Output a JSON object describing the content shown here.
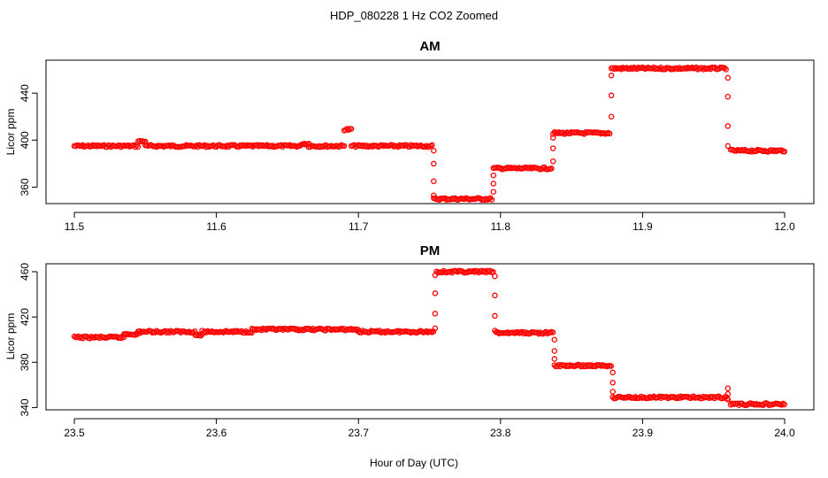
{
  "title": "HDP_080228  1 Hz CO2 Zoomed",
  "colors": {
    "points": "#ff0000",
    "axis": "#000000",
    "background": "#ffffff"
  },
  "chart_data": [
    {
      "type": "scatter",
      "title": "AM",
      "xlabel": "",
      "ylabel": "Licor ppm",
      "xlim": [
        11.5,
        12.0
      ],
      "ylim": [
        346,
        468
      ],
      "xticks": [
        11.5,
        11.6,
        11.7,
        11.8,
        11.9,
        12.0
      ],
      "xtick_labels": [
        "11.5",
        "11.6",
        "11.7",
        "11.8",
        "11.9",
        "12.0"
      ],
      "yticks": [
        360,
        400,
        440
      ],
      "ytick_labels": [
        "360",
        "400",
        "440"
      ],
      "grid": false,
      "segments": [
        {
          "x0": 11.5,
          "x1": 11.545,
          "y": 395
        },
        {
          "x0": 11.545,
          "x1": 11.55,
          "y": 399
        },
        {
          "x0": 11.55,
          "x1": 11.66,
          "y": 395
        },
        {
          "x0": 11.66,
          "x1": 11.665,
          "y": 397
        },
        {
          "x0": 11.665,
          "x1": 11.69,
          "y": 395
        },
        {
          "x0": 11.69,
          "x1": 11.695,
          "y": 409
        },
        {
          "x0": 11.695,
          "x1": 11.752,
          "y": 395
        },
        {
          "x0": 11.753,
          "x1": 11.794,
          "y": 350
        },
        {
          "x0": 11.795,
          "x1": 11.836,
          "y": 376
        },
        {
          "x0": 11.837,
          "x1": 11.877,
          "y": 406
        },
        {
          "x0": 11.878,
          "x1": 11.959,
          "y": 461
        },
        {
          "x0": 11.962,
          "x1": 12.0,
          "y": 391
        }
      ],
      "transitions": [
        {
          "x": 11.753,
          "y": [
            391,
            380,
            365,
            353
          ]
        },
        {
          "x": 11.795,
          "y": [
            356,
            363,
            370
          ]
        },
        {
          "x": 11.837,
          "y": [
            382,
            393,
            402
          ]
        },
        {
          "x": 11.878,
          "y": [
            420,
            438,
            455
          ]
        },
        {
          "x": 11.96,
          "y": [
            453,
            437,
            412,
            395
          ]
        }
      ]
    },
    {
      "type": "scatter",
      "title": "PM",
      "xlabel": "Hour of Day (UTC)",
      "ylabel": "Licor ppm",
      "xlim": [
        23.5,
        24.0
      ],
      "ylim": [
        338,
        467
      ],
      "xticks": [
        23.5,
        23.6,
        23.7,
        23.8,
        23.9,
        24.0
      ],
      "xtick_labels": [
        "23.5",
        "23.6",
        "23.7",
        "23.8",
        "23.9",
        "24.0"
      ],
      "yticks": [
        340,
        380,
        420,
        460
      ],
      "ytick_labels": [
        "340",
        "380",
        "420",
        "460"
      ],
      "grid": false,
      "segments": [
        {
          "x0": 23.5,
          "x1": 23.535,
          "y": 402
        },
        {
          "x0": 23.535,
          "x1": 23.545,
          "y": 405
        },
        {
          "x0": 23.545,
          "x1": 23.585,
          "y": 407
        },
        {
          "x0": 23.585,
          "x1": 23.59,
          "y": 404
        },
        {
          "x0": 23.59,
          "x1": 23.625,
          "y": 407
        },
        {
          "x0": 23.625,
          "x1": 23.7,
          "y": 409
        },
        {
          "x0": 23.7,
          "x1": 23.753,
          "y": 407
        },
        {
          "x0": 23.755,
          "x1": 23.795,
          "y": 460
        },
        {
          "x0": 23.797,
          "x1": 23.837,
          "y": 406
        },
        {
          "x0": 23.838,
          "x1": 23.878,
          "y": 377
        },
        {
          "x0": 23.879,
          "x1": 23.96,
          "y": 349
        },
        {
          "x0": 23.962,
          "x1": 24.0,
          "y": 343
        }
      ],
      "transitions": [
        {
          "x": 23.754,
          "y": [
            410,
            423,
            441,
            457
          ]
        },
        {
          "x": 23.796,
          "y": [
            456,
            439,
            421,
            408
          ]
        },
        {
          "x": 23.838,
          "y": [
            400,
            390,
            383
          ]
        },
        {
          "x": 23.879,
          "y": [
            371,
            362,
            354
          ]
        },
        {
          "x": 23.96,
          "y": [
            357,
            352,
            347
          ]
        }
      ]
    }
  ]
}
